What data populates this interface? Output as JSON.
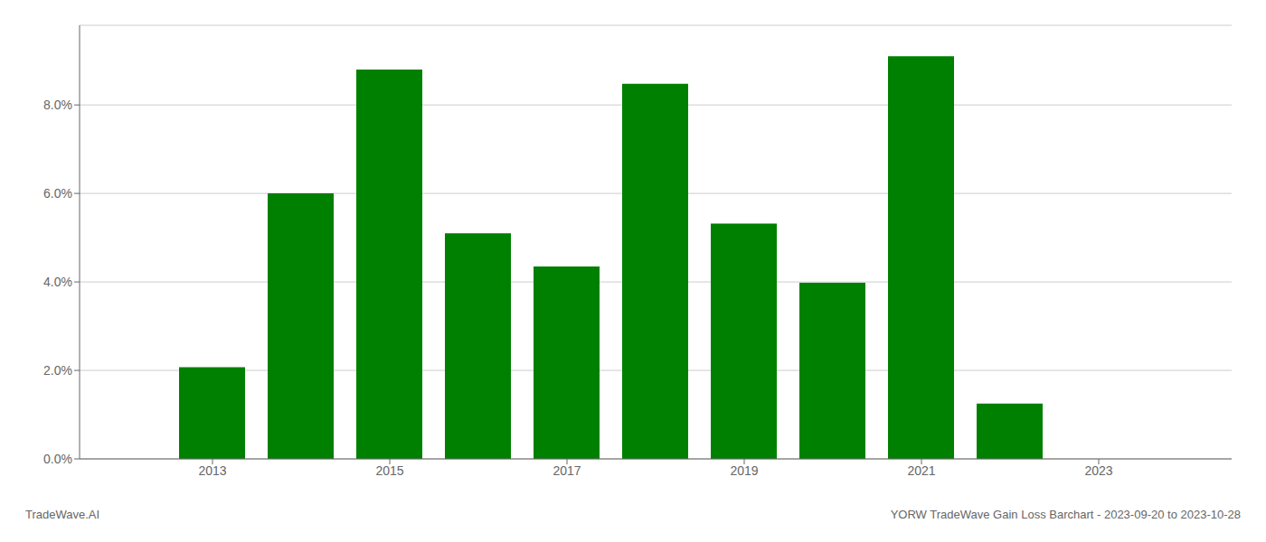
{
  "chart_data": {
    "type": "bar",
    "x": [
      2013,
      2014,
      2015,
      2016,
      2017,
      2018,
      2019,
      2020,
      2021,
      2022
    ],
    "values": [
      0.0207,
      0.06,
      0.088,
      0.051,
      0.0435,
      0.0848,
      0.0532,
      0.0398,
      0.091,
      0.0125
    ],
    "color": "#008000",
    "xlim": [
      2011.5,
      2024.5
    ],
    "xticks": [
      2013,
      2015,
      2017,
      2019,
      2021,
      2023
    ],
    "ylim": [
      0,
      0.098
    ],
    "yticks": [
      {
        "value": 0.0,
        "label": "0.0%"
      },
      {
        "value": 0.02,
        "label": "2.0%"
      },
      {
        "value": 0.04,
        "label": "4.0%"
      },
      {
        "value": 0.06,
        "label": "6.0%"
      },
      {
        "value": 0.08,
        "label": "8.0%"
      }
    ],
    "grid": "y",
    "annotations": [
      "TradeWave.AI",
      "YORW TradeWave Gain Loss Barchart - 2023-09-20 to 2023-10-28"
    ]
  }
}
